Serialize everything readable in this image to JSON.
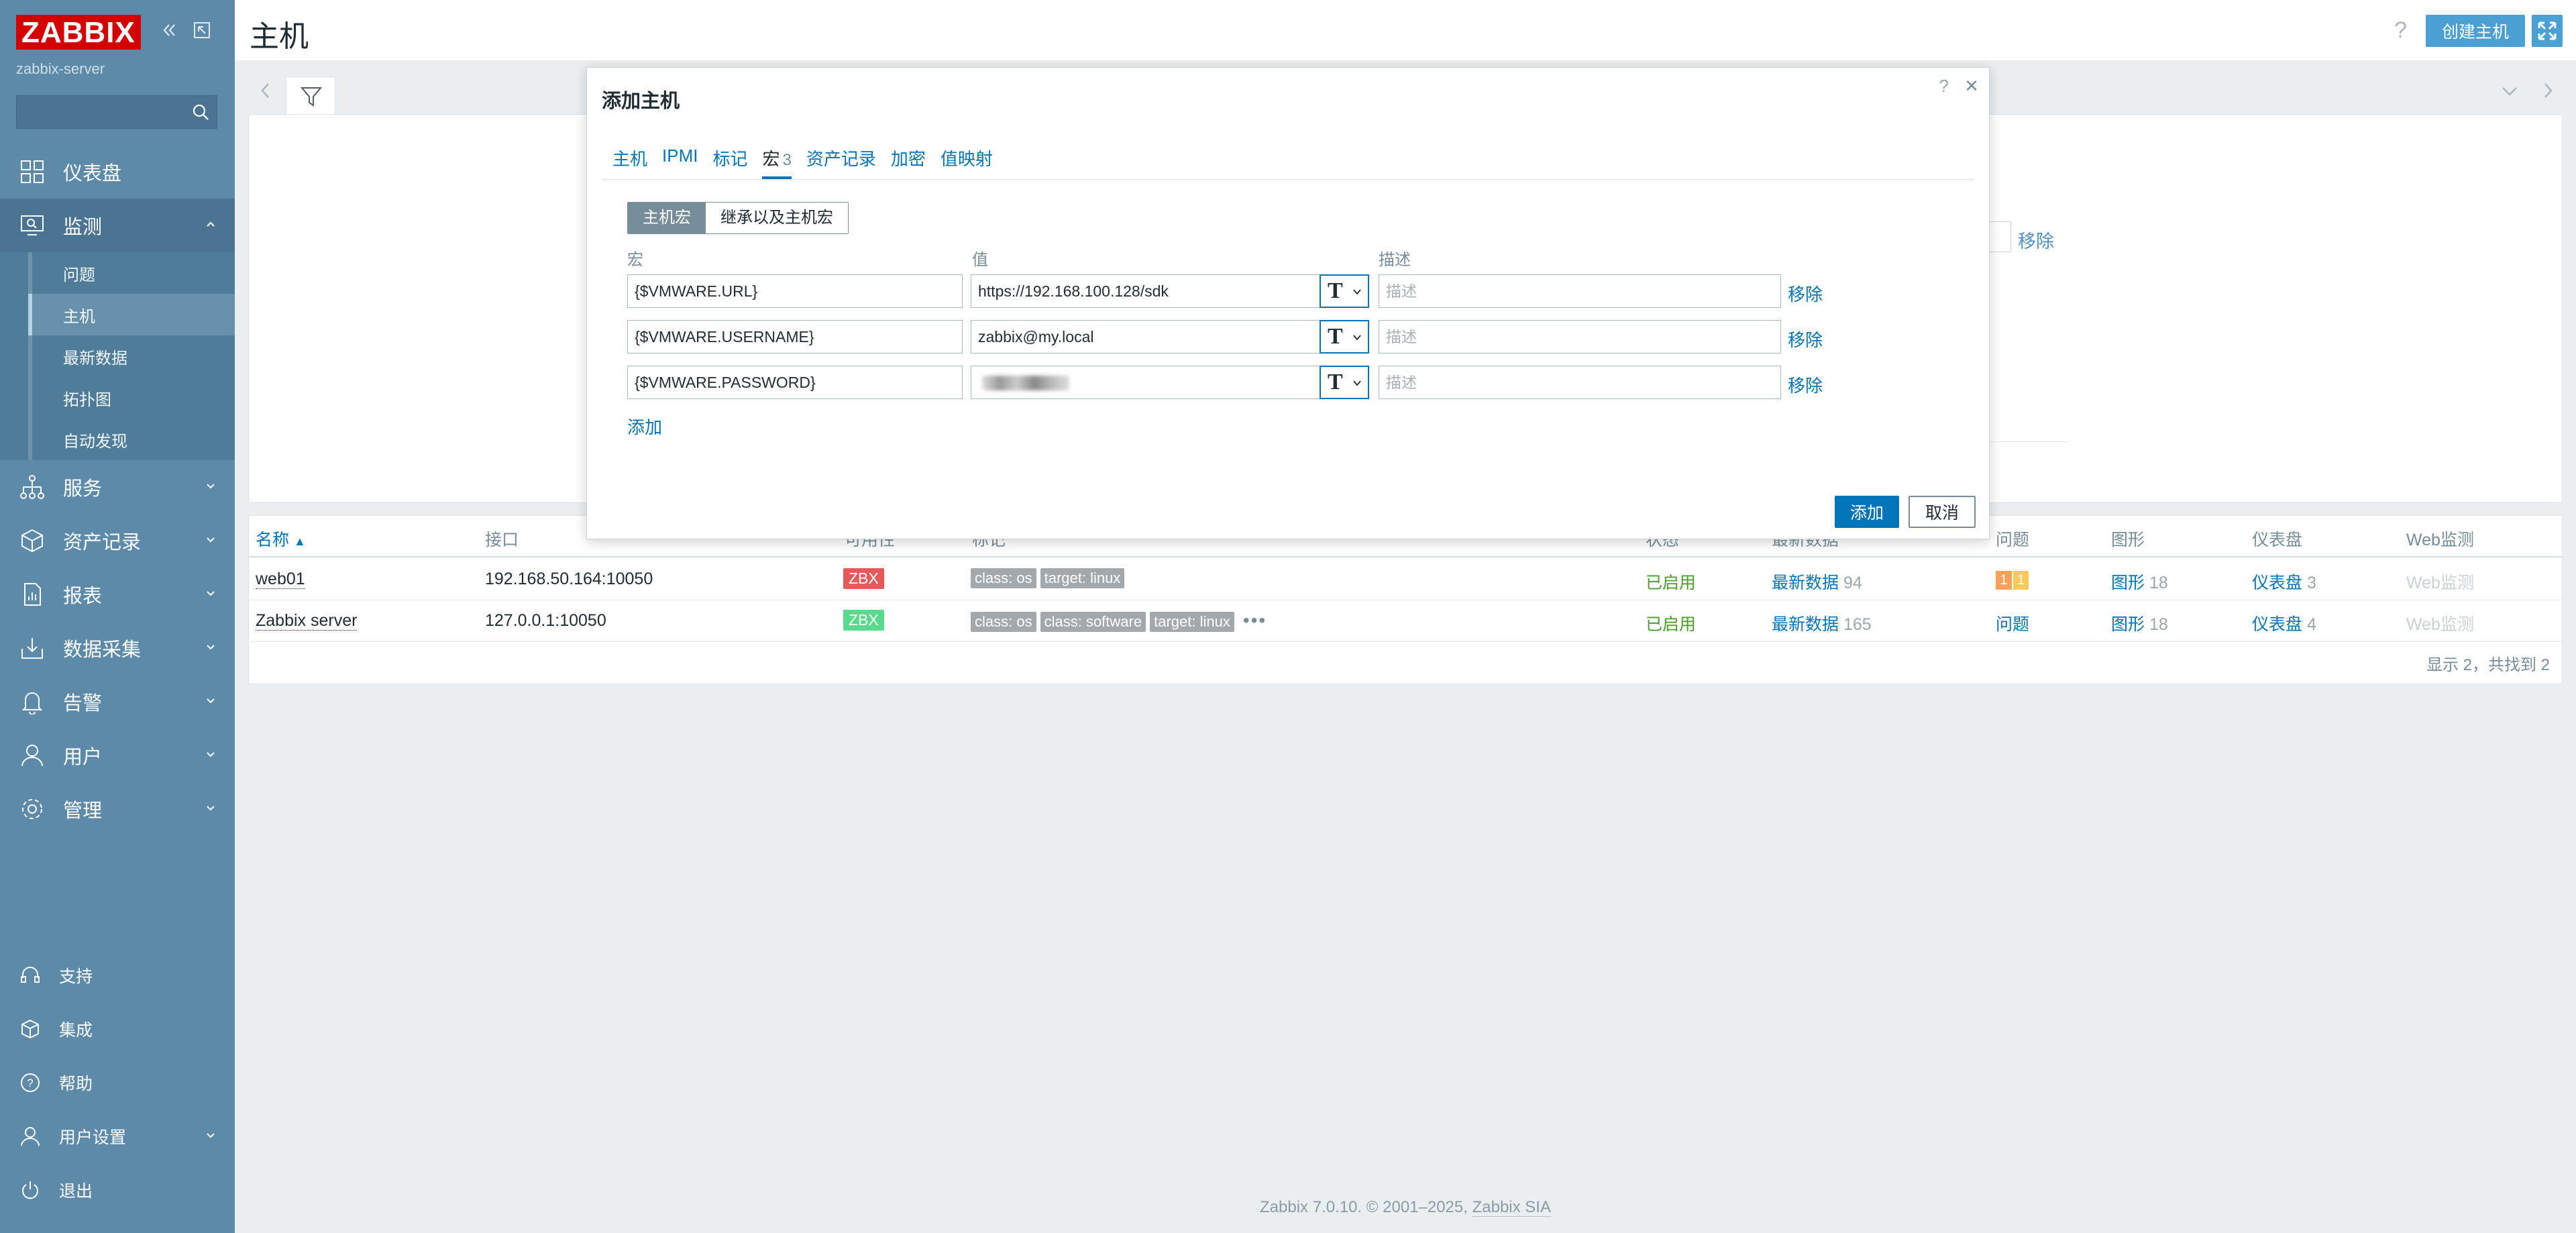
{
  "sidebar": {
    "logo": "ZABBIX",
    "server_name": "zabbix-server",
    "search_placeholder": "",
    "items": [
      {
        "label": "仪表盘"
      },
      {
        "label": "监测"
      },
      {
        "label": "服务"
      },
      {
        "label": "资产记录"
      },
      {
        "label": "报表"
      },
      {
        "label": "数据采集"
      },
      {
        "label": "告警"
      },
      {
        "label": "用户"
      },
      {
        "label": "管理"
      }
    ],
    "monitoring_sub": [
      "问题",
      "主机",
      "最新数据",
      "拓扑图",
      "自动发现"
    ],
    "bottom": [
      "支持",
      "集成",
      "帮助",
      "用户设置",
      "退出"
    ]
  },
  "header": {
    "title": "主机",
    "help": "?",
    "create_host": "创建主机"
  },
  "background": {
    "remove_label": "移除"
  },
  "table": {
    "headers": [
      "名称",
      "接口",
      "可用性",
      "标记",
      "状态",
      "最新数据",
      "问题",
      "图形",
      "仪表盘",
      "Web监测"
    ],
    "rows": [
      {
        "name": "web01",
        "interface": "192.168.50.164:10050",
        "avail": "ZBX",
        "avail_color": "#e45959",
        "tags": [
          "class: os",
          "target: linux"
        ],
        "status": "已启用",
        "latest": "最新数据",
        "latest_count": "94",
        "problems": [
          "1",
          "1"
        ],
        "graphs": "图形",
        "graphs_count": "18",
        "dashboards": "仪表盘",
        "dashboards_count": "3",
        "web": "Web监测"
      },
      {
        "name": "Zabbix server",
        "interface": "127.0.0.1:10050",
        "avail": "ZBX",
        "avail_color": "#59db8f",
        "tags": [
          "class: os",
          "class: software",
          "target: linux"
        ],
        "status": "已启用",
        "latest": "最新数据",
        "latest_count": "165",
        "problems_label": "问题",
        "graphs": "图形",
        "graphs_count": "18",
        "dashboards": "仪表盘",
        "dashboards_count": "4",
        "web": "Web监测"
      }
    ],
    "footer": "显示 2，共找到 2"
  },
  "footer": {
    "text": "Zabbix 7.0.10. © 2001–2025, ",
    "company": "Zabbix SIA"
  },
  "dialog": {
    "title": "添加主机",
    "help": "?",
    "close": "×",
    "tabs": [
      {
        "label": "主机"
      },
      {
        "label": "IPMI"
      },
      {
        "label": "标记"
      },
      {
        "label": "宏",
        "count": "3"
      },
      {
        "label": "资产记录"
      },
      {
        "label": "加密"
      },
      {
        "label": "值映射"
      }
    ],
    "segments": [
      "主机宏",
      "继承以及主机宏"
    ],
    "col_macro": "宏",
    "col_value": "值",
    "col_desc": "描述",
    "macros": [
      {
        "macro": "{$VMWARE.URL}",
        "value": "https://192.168.100.128/sdk",
        "desc_placeholder": "描述",
        "remove": "移除"
      },
      {
        "macro": "{$VMWARE.USERNAME}",
        "value": "zabbix@my.local",
        "desc_placeholder": "描述",
        "remove": "移除"
      },
      {
        "macro": "{$VMWARE.PASSWORD}",
        "value": "",
        "desc_placeholder": "描述",
        "remove": "移除"
      }
    ],
    "type_glyph": "T",
    "add_link": "添加",
    "add_button": "添加",
    "cancel_button": "取消"
  }
}
